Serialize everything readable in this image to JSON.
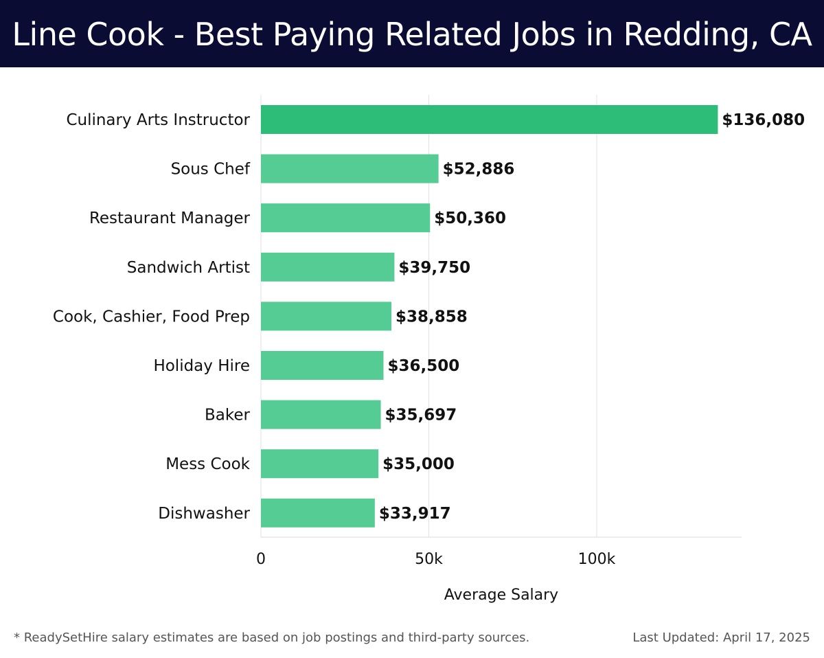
{
  "header": {
    "title": "Line Cook - Best Paying Related Jobs in Redding, CA"
  },
  "chart_data": {
    "type": "bar",
    "orientation": "horizontal",
    "categories": [
      "Culinary Arts Instructor",
      "Sous Chef",
      "Restaurant Manager",
      "Sandwich Artist",
      "Cook, Cashier, Food Prep",
      "Holiday Hire",
      "Baker",
      "Mess Cook",
      "Dishwasher"
    ],
    "values": [
      136080,
      52886,
      50360,
      39750,
      38858,
      36500,
      35697,
      35000,
      33917
    ],
    "value_labels": [
      "$136,080",
      "$52,886",
      "$50,360",
      "$39,750",
      "$38,858",
      "$36,500",
      "$35,697",
      "$35,000",
      "$33,917"
    ],
    "xlabel": "Average Salary",
    "ylabel": "",
    "xlim": [
      0,
      143000
    ],
    "xticks": [
      0,
      50000,
      100000
    ],
    "xtick_labels": [
      "0",
      "50k",
      "100k"
    ],
    "grid": true,
    "colors": {
      "highlight": "#2ebd78",
      "bar": "#55cc93"
    }
  },
  "footer": {
    "note": "* ReadySetHire salary estimates are based on job postings and third-party sources.",
    "updated": "Last Updated: April 17, 2025"
  }
}
